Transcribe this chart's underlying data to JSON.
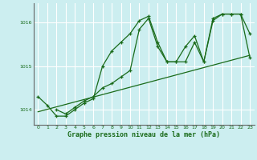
{
  "bg_color": "#cceef0",
  "grid_color": "#ffffff",
  "line_color": "#1a6b1a",
  "xlabel": "Graphe pression niveau de la mer (hPa)",
  "ylim": [
    1013.65,
    1016.45
  ],
  "xlim": [
    -0.5,
    23.5
  ],
  "yticks": [
    1014,
    1015,
    1016
  ],
  "xticks": [
    0,
    1,
    2,
    3,
    4,
    5,
    6,
    7,
    8,
    9,
    10,
    11,
    12,
    13,
    14,
    15,
    16,
    17,
    18,
    19,
    20,
    21,
    22,
    23
  ],
  "series1_x": [
    0,
    1,
    2,
    3,
    4,
    5,
    6,
    7,
    8,
    9,
    10,
    11,
    12,
    13,
    14,
    15,
    16,
    17,
    18,
    19,
    20,
    21,
    22,
    23
  ],
  "series1_y": [
    1014.3,
    1014.1,
    1013.85,
    1013.85,
    1014.0,
    1014.15,
    1014.25,
    1015.0,
    1015.35,
    1015.55,
    1015.75,
    1016.05,
    1016.15,
    1015.55,
    1015.1,
    1015.1,
    1015.1,
    1015.55,
    1015.1,
    1016.1,
    1016.2,
    1016.2,
    1016.2,
    1015.75
  ],
  "series2_x": [
    2,
    3,
    4,
    5,
    6,
    7,
    8,
    9,
    10,
    11,
    12,
    13,
    14,
    15,
    16,
    17,
    18,
    19,
    20,
    21,
    22,
    23
  ],
  "series2_y": [
    1014.0,
    1013.9,
    1014.05,
    1014.2,
    1014.3,
    1014.5,
    1014.6,
    1014.75,
    1014.9,
    1015.85,
    1016.1,
    1015.45,
    1015.1,
    1015.1,
    1015.45,
    1015.7,
    1015.1,
    1016.05,
    1016.2,
    1016.2,
    1016.2,
    1015.2
  ],
  "series3_x": [
    0,
    23
  ],
  "series3_y": [
    1013.95,
    1015.25
  ]
}
